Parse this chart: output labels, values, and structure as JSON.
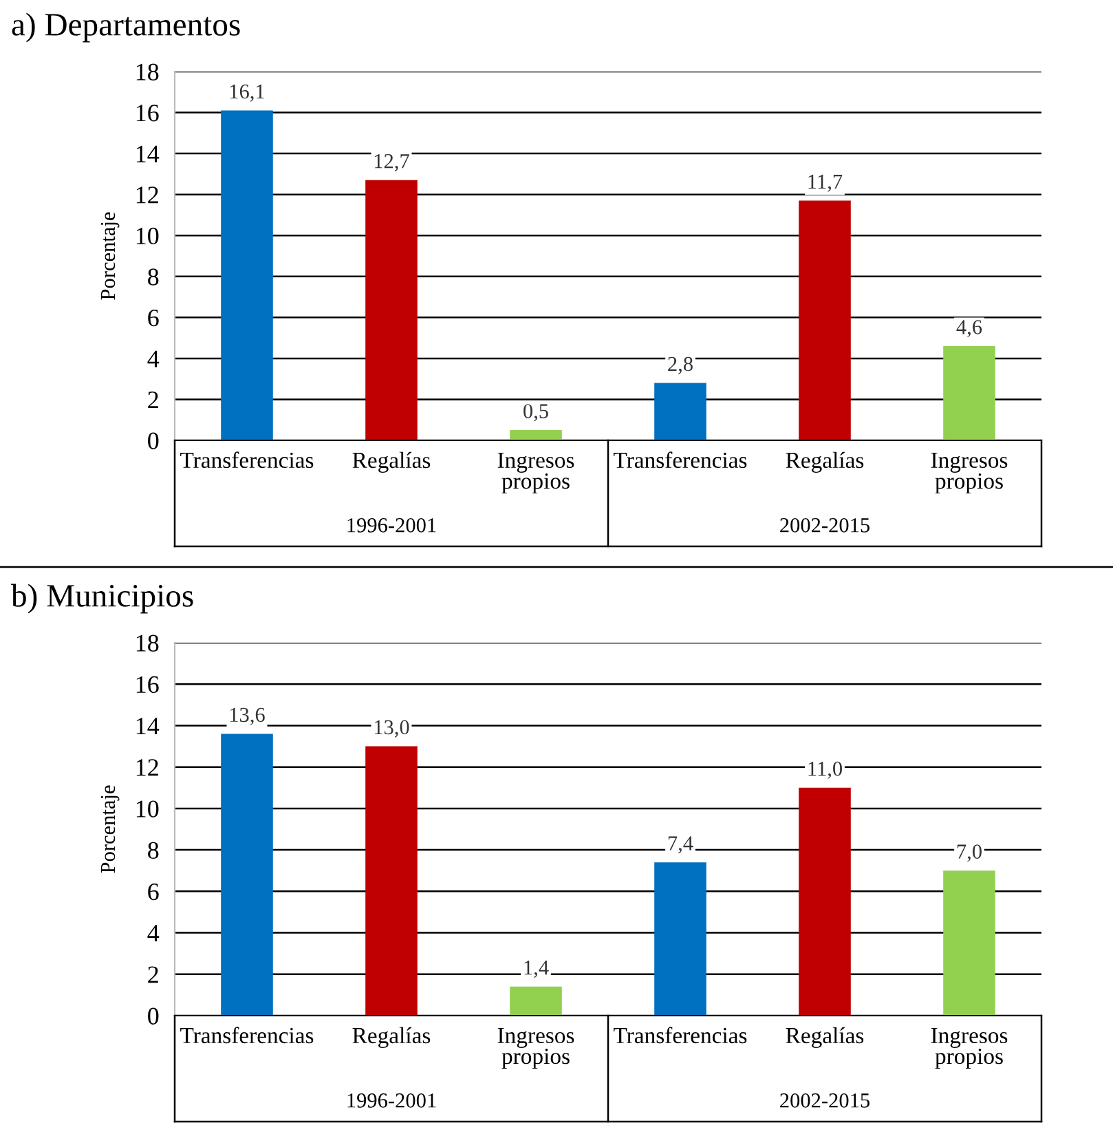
{
  "chart_data": [
    {
      "type": "bar",
      "title": "a) Departamentos",
      "ylabel": "Porcentaje",
      "categories": [
        "Transferencias",
        "Regalías",
        "Ingresos\npropios",
        "Transferencias",
        "Regalías",
        "Ingresos\npropios"
      ],
      "values": [
        16.1,
        12.7,
        0.5,
        2.8,
        11.7,
        4.6
      ],
      "colors": [
        "#0070c0",
        "#c00000",
        "#92d050",
        "#0070c0",
        "#c00000",
        "#92d050"
      ],
      "value_labels": [
        "16,1",
        "12,7",
        "0,5",
        "2,8",
        "11,7",
        "4,6"
      ],
      "annotations": [
        "1996-2001",
        "2002-2015"
      ],
      "ylim": [
        0,
        18
      ],
      "yticks": [
        0,
        2,
        4,
        6,
        8,
        10,
        12,
        14,
        16,
        18
      ],
      "grid": "y",
      "legend": false
    },
    {
      "type": "bar",
      "title": "b) Municipios",
      "ylabel": "Porcentaje",
      "categories": [
        "Transferencias",
        "Regalías",
        "Ingresos\npropios",
        "Transferencias",
        "Regalías",
        "Ingresos\npropios"
      ],
      "values": [
        13.6,
        13.0,
        1.4,
        7.4,
        11.0,
        7.0
      ],
      "colors": [
        "#0070c0",
        "#c00000",
        "#92d050",
        "#0070c0",
        "#c00000",
        "#92d050"
      ],
      "value_labels": [
        "13,6",
        "13,0",
        "1,4",
        "7,4",
        "11,0",
        "7,0"
      ],
      "annotations": [
        "1996-2001",
        "2002-2015"
      ],
      "ylim": [
        0,
        18
      ],
      "yticks": [
        0,
        2,
        4,
        6,
        8,
        10,
        12,
        14,
        16,
        18
      ],
      "grid": "y",
      "legend": false
    }
  ]
}
